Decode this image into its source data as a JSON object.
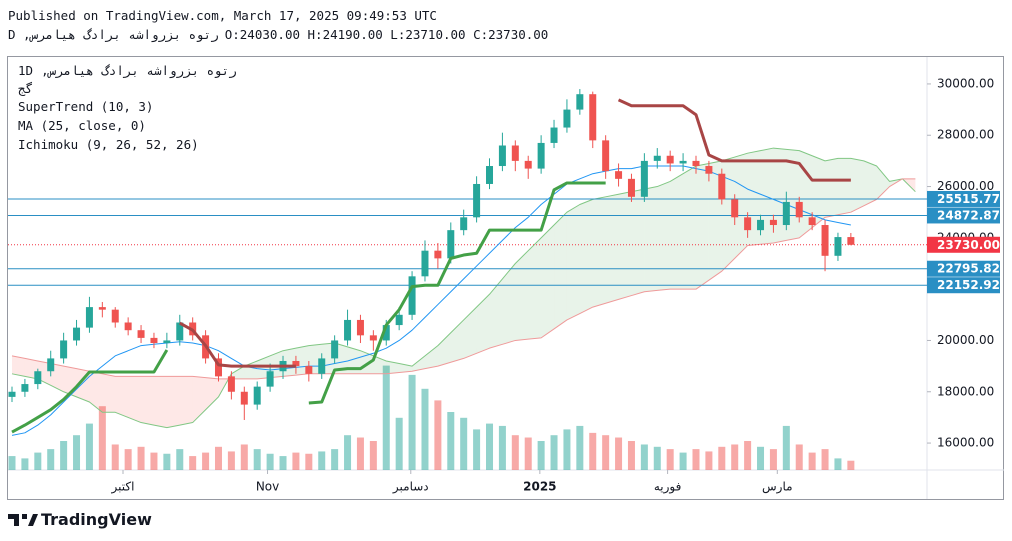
{
  "chart_data": {
    "type": "candlestick",
    "header": {
      "published": "Published on TradingView.com, March 17, 2025 09:49:53 UTC",
      "symbol": "رتوه بزرواشه برادگ هیامرس, D",
      "quote": "O:24030.00 H:24190.00 L:23710.00 C:23730.00"
    },
    "legend": {
      "interval": "1D",
      "name": "رتوه بزرواشه برادگ هیامرس,",
      "exchange": "گج"
    },
    "brand": "TradingView",
    "ylim": [
      14950,
      31050
    ],
    "yticks": [
      {
        "value": 16000,
        "label": "16000.00"
      },
      {
        "value": 18000,
        "label": "18000.00"
      },
      {
        "value": 20000,
        "label": "20000.00"
      },
      {
        "value": 22000,
        "label": "22000.00"
      },
      {
        "value": 24000,
        "label": "24000.00"
      },
      {
        "value": 26000,
        "label": "26000.00"
      },
      {
        "value": 28000,
        "label": "28000.00"
      },
      {
        "value": 30000,
        "label": "30000.00"
      }
    ],
    "xlim": [
      -0.31,
      70.9
    ],
    "xticks": [
      {
        "value": 8.6,
        "label": "اکتبر"
      },
      {
        "value": 19.8,
        "label": "Nov"
      },
      {
        "value": 30.9,
        "label": "دسامبر"
      },
      {
        "value": 40.9,
        "label": "2025",
        "bold": true
      },
      {
        "value": 50.8,
        "label": "فوریه"
      },
      {
        "value": 59.3,
        "label": "مارس"
      }
    ],
    "grid": false,
    "up_color": "#26a69a",
    "down_color": "#ef5350",
    "ohlc": [
      [
        17800,
        18200,
        17600,
        18000
      ],
      [
        18000,
        18500,
        17800,
        18300
      ],
      [
        18300,
        18900,
        18100,
        18800
      ],
      [
        18800,
        19600,
        18600,
        19300
      ],
      [
        19300,
        20300,
        19100,
        20000
      ],
      [
        20000,
        20800,
        19800,
        20500
      ],
      [
        20500,
        21700,
        20300,
        21300
      ],
      [
        21300,
        21500,
        20900,
        21200
      ],
      [
        21200,
        21300,
        20500,
        20700
      ],
      [
        20700,
        20900,
        20200,
        20400
      ],
      [
        20400,
        20600,
        19900,
        20100
      ],
      [
        20100,
        20300,
        19700,
        19900
      ],
      [
        19900,
        20300,
        19700,
        20000
      ],
      [
        20000,
        21000,
        19800,
        20700
      ],
      [
        20700,
        20900,
        20000,
        20200
      ],
      [
        20200,
        20400,
        19100,
        19300
      ],
      [
        19300,
        19500,
        18400,
        18600
      ],
      [
        18600,
        18800,
        17700,
        18000
      ],
      [
        18000,
        18200,
        16900,
        17500
      ],
      [
        17500,
        18400,
        17300,
        18200
      ],
      [
        18200,
        19100,
        18000,
        18800
      ],
      [
        18800,
        19400,
        18500,
        19200
      ],
      [
        19200,
        19400,
        18700,
        19000
      ],
      [
        19000,
        19200,
        18400,
        18700
      ],
      [
        18700,
        19500,
        18500,
        19300
      ],
      [
        19300,
        20200,
        19100,
        20000
      ],
      [
        20000,
        21200,
        19800,
        20800
      ],
      [
        20800,
        21000,
        19900,
        20200
      ],
      [
        20200,
        20400,
        19600,
        20000
      ],
      [
        20000,
        20800,
        19800,
        20600
      ],
      [
        20600,
        21300,
        20400,
        21000
      ],
      [
        21000,
        22700,
        20800,
        22500
      ],
      [
        22500,
        23900,
        22300,
        23500
      ],
      [
        23500,
        23800,
        22800,
        23200
      ],
      [
        23200,
        24600,
        23000,
        24300
      ],
      [
        24300,
        25100,
        24100,
        24800
      ],
      [
        24800,
        26400,
        24600,
        26100
      ],
      [
        26100,
        27100,
        25900,
        26800
      ],
      [
        26800,
        28100,
        26600,
        27600
      ],
      [
        27600,
        27800,
        26600,
        27000
      ],
      [
        27000,
        27200,
        26300,
        26700
      ],
      [
        26700,
        28000,
        26500,
        27700
      ],
      [
        27700,
        28600,
        27500,
        28300
      ],
      [
        28300,
        29400,
        28100,
        29000
      ],
      [
        29000,
        29800,
        28800,
        29600
      ],
      [
        29600,
        29700,
        27500,
        27800
      ],
      [
        27800,
        28000,
        26300,
        26600
      ],
      [
        26600,
        26900,
        26000,
        26300
      ],
      [
        26300,
        26500,
        25400,
        25600
      ],
      [
        25600,
        27300,
        25400,
        27000
      ],
      [
        27000,
        27500,
        26700,
        27200
      ],
      [
        27200,
        27400,
        26600,
        26900
      ],
      [
        26900,
        27300,
        26600,
        27000
      ],
      [
        27000,
        27200,
        26500,
        26800
      ],
      [
        26800,
        27000,
        26200,
        26500
      ],
      [
        26500,
        26700,
        25300,
        25500
      ],
      [
        25500,
        25700,
        24500,
        24800
      ],
      [
        24800,
        25000,
        24000,
        24300
      ],
      [
        24300,
        24900,
        24100,
        24700
      ],
      [
        24700,
        24900,
        24200,
        24500
      ],
      [
        24500,
        25800,
        24300,
        25400
      ],
      [
        25400,
        25600,
        24600,
        24800
      ],
      [
        24800,
        25000,
        24300,
        24500
      ],
      [
        24500,
        24700,
        22700,
        23300
      ],
      [
        23300,
        24200,
        23100,
        24030
      ],
      [
        24030,
        24190,
        23710,
        23730
      ]
    ],
    "volume": [
      12,
      10,
      15,
      18,
      25,
      30,
      40,
      55,
      22,
      18,
      20,
      15,
      14,
      18,
      12,
      15,
      20,
      16,
      22,
      18,
      14,
      12,
      15,
      14,
      16,
      18,
      30,
      28,
      25,
      90,
      45,
      82,
      70,
      60,
      50,
      45,
      35,
      40,
      38,
      30,
      28,
      25,
      30,
      35,
      38,
      32,
      30,
      28,
      25,
      22,
      20,
      18,
      15,
      18,
      16,
      20,
      22,
      25,
      20,
      18,
      38,
      22,
      15,
      18,
      10,
      8
    ],
    "volume_ylim": [
      0,
      100
    ],
    "supertrend": {
      "name": "SuperTrend (10, 3)",
      "up_color": "#43a047",
      "down_color": "#a84545",
      "up": [
        16430,
        16700,
        17000,
        17300,
        17700,
        18200,
        18770,
        18770,
        18770,
        18770,
        18770,
        18770,
        19630,
        null,
        null,
        null,
        null,
        null,
        null,
        null,
        null,
        null,
        null,
        17560,
        17600,
        18850,
        18900,
        18900,
        19240,
        20600,
        21200,
        22100,
        22150,
        22150,
        23200,
        23330,
        23400,
        24300,
        24300,
        24300,
        24300,
        24300,
        25870,
        26140,
        26140,
        26140,
        26140,
        null,
        null,
        null,
        null,
        null,
        null,
        null,
        null,
        null,
        null,
        null,
        null,
        null,
        null,
        null,
        null,
        null,
        null,
        null
      ],
      "down": [
        null,
        null,
        null,
        null,
        null,
        null,
        null,
        null,
        null,
        null,
        null,
        null,
        null,
        20680,
        20400,
        19800,
        19050,
        19000,
        19000,
        19000,
        19000,
        19000,
        19000,
        null,
        null,
        null,
        null,
        null,
        null,
        null,
        null,
        null,
        null,
        null,
        null,
        null,
        null,
        null,
        null,
        null,
        null,
        null,
        null,
        null,
        null,
        null,
        null,
        29380,
        29150,
        29150,
        29150,
        29150,
        29150,
        28800,
        27230,
        27000,
        27000,
        27000,
        27000,
        27000,
        27000,
        26900,
        26250,
        26250,
        26250,
        26250
      ]
    },
    "ma": {
      "name": "MA (25, close, 0)",
      "color": "#2196f3",
      "values": [
        16300,
        16400,
        16700,
        17100,
        17600,
        18100,
        18600,
        19000,
        19400,
        19600,
        19800,
        19850,
        19900,
        19950,
        19900,
        19800,
        19600,
        19300,
        19000,
        18900,
        18850,
        18900,
        18950,
        19000,
        19000,
        19100,
        19200,
        19350,
        19500,
        19700,
        20000,
        20400,
        20900,
        21400,
        21900,
        22400,
        22900,
        23400,
        23900,
        24400,
        24800,
        25300,
        25700,
        26100,
        26300,
        26500,
        26600,
        26700,
        26700,
        26800,
        26800,
        26800,
        26800,
        26700,
        26600,
        26400,
        26200,
        25900,
        25700,
        25500,
        25300,
        25100,
        24900,
        24700,
        24600,
        24500
      ]
    },
    "ichimoku": {
      "name": "Ichimoku (9, 26, 52, 26)",
      "color_a": "#81c784",
      "color_b": "#ef9a9a",
      "fill_a": "rgba(67,160,71,0.12)",
      "fill_b": "rgba(244,67,54,0.12)",
      "span_a": [
        18700,
        18600,
        18500,
        18250,
        18000,
        17800,
        17600,
        17200,
        17200,
        17000,
        16800,
        16700,
        16600,
        16700,
        16800,
        17300,
        17800,
        18700,
        19000,
        19200,
        19400,
        19600,
        19700,
        19800,
        19850,
        19900,
        19750,
        19600,
        19400,
        19200,
        19100,
        19000,
        19400,
        19800,
        20300,
        20800,
        21300,
        21800,
        22400,
        23000,
        23500,
        24000,
        24500,
        25000,
        25300,
        25500,
        25600,
        25700,
        25800,
        25900,
        26000,
        26200,
        26500,
        26800,
        26900,
        27000,
        27150,
        27300,
        27400,
        27500,
        27450,
        27400,
        27200,
        27000,
        27100,
        27100,
        27000,
        26800,
        26200,
        26300,
        25800
      ],
      "span_b": [
        19400,
        19300,
        19200,
        19100,
        19000,
        18900,
        18800,
        18700,
        18600,
        18600,
        18600,
        18600,
        18600,
        18600,
        18600,
        18550,
        18500,
        18500,
        18500,
        18500,
        18550,
        18600,
        18650,
        18700,
        18700,
        18700,
        18700,
        18700,
        18700,
        18700,
        18750,
        18800,
        18900,
        19000,
        19150,
        19300,
        19500,
        19700,
        19850,
        20000,
        20050,
        20100,
        20450,
        20800,
        21050,
        21300,
        21450,
        21600,
        21750,
        21900,
        21950,
        22000,
        22000,
        22000,
        22350,
        22700,
        23200,
        23700,
        23750,
        23800,
        23900,
        24000,
        24400,
        24800,
        24900,
        25000,
        25250,
        25500,
        26000,
        26300,
        26300
      ]
    },
    "level_color": "#2a8fc4",
    "levels": [
      {
        "value": 25515.77,
        "label": "25515.77"
      },
      {
        "value": 24872.87,
        "label": "24872.87"
      },
      {
        "value": 22795.82,
        "label": "22795.82"
      },
      {
        "value": 22152.92,
        "label": "22152.92"
      }
    ],
    "last_price": {
      "value": 23730,
      "label": "23730.00",
      "color": "#f23645"
    }
  }
}
